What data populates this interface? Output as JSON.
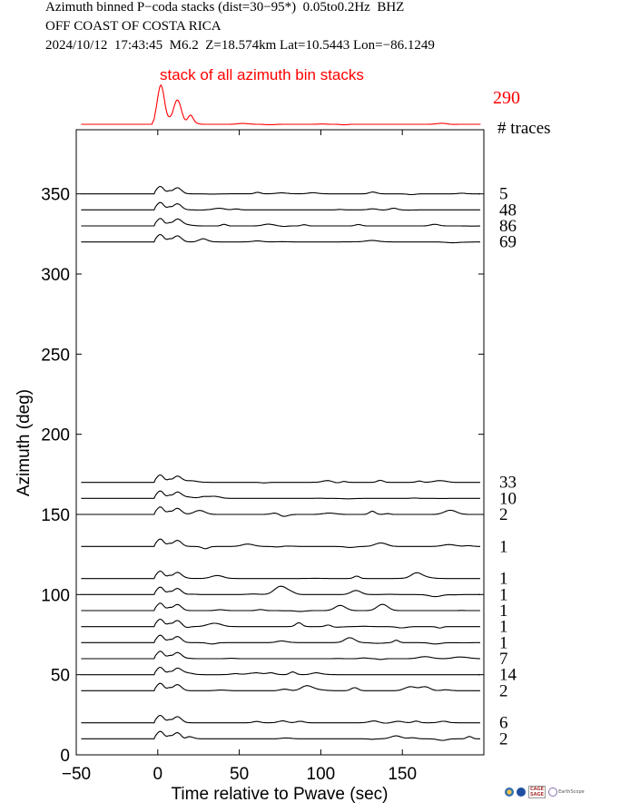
{
  "header": {
    "line1": "Azimuth binned P−coda stacks (dist=30−95*)  0.05to0.2Hz  BHZ",
    "line2": "OFF COAST OF COSTA RICA",
    "line3": "2024/10/12  17:43:45  M6.2  Z=18.574km Lat=10.5443 Lon=−86.1249"
  },
  "chart_data": {
    "type": "line",
    "title": "Azimuth binned P−coda stacks (dist=30−95*)  0.05to0.2Hz  BHZ",
    "xlabel": "Time relative to Pwave (sec)",
    "ylabel": "Azimuth (deg)",
    "xlim": [
      -50,
      200
    ],
    "ylim": [
      0,
      390
    ],
    "xticks": [
      -50,
      0,
      50,
      100,
      150
    ],
    "yticks": [
      0,
      50,
      100,
      150,
      200,
      250,
      300,
      350
    ],
    "grid": false,
    "all_stack": {
      "label": "stack of all azimuth bin stacks",
      "traces": "290",
      "color": "#ff0000"
    },
    "traces_header": "# traces",
    "series": [
      {
        "azimuth": 350,
        "traces": "5"
      },
      {
        "azimuth": 340,
        "traces": "48"
      },
      {
        "azimuth": 330,
        "traces": "86"
      },
      {
        "azimuth": 320,
        "traces": "69"
      },
      {
        "azimuth": 170,
        "traces": "33"
      },
      {
        "azimuth": 160,
        "traces": "10"
      },
      {
        "azimuth": 150,
        "traces": "2"
      },
      {
        "azimuth": 130,
        "traces": "1"
      },
      {
        "azimuth": 110,
        "traces": "1"
      },
      {
        "azimuth": 100,
        "traces": "1"
      },
      {
        "azimuth": 90,
        "traces": "1"
      },
      {
        "azimuth": 80,
        "traces": "1"
      },
      {
        "azimuth": 70,
        "traces": "1"
      },
      {
        "azimuth": 60,
        "traces": "7"
      },
      {
        "azimuth": 50,
        "traces": "14"
      },
      {
        "azimuth": 40,
        "traces": "2"
      },
      {
        "azimuth": 20,
        "traces": "6"
      },
      {
        "azimuth": 10,
        "traces": "2"
      }
    ]
  },
  "logos": {
    "cage": "CAGE",
    "sage": "SAGE",
    "earthscope": "EarthScope"
  }
}
